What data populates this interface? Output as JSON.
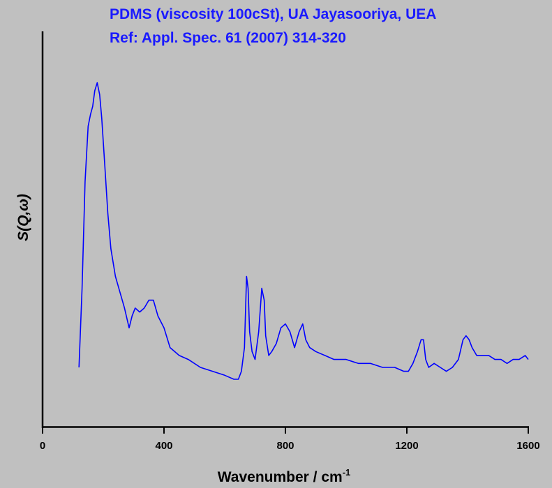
{
  "chart_data": {
    "type": "line",
    "title_lines": [
      "PDMS (viscosity 100cSt), UA Jayasooriya, UEA",
      "Ref: Appl. Spec. 61 (2007) 314-320"
    ],
    "xlabel": "Wavenumber / cm",
    "xlabel_superscript": "-1",
    "ylabel": "S(Q,ω)",
    "xlim": [
      0,
      1600
    ],
    "ylim": [
      0,
      100
    ],
    "x_ticks": [
      "0",
      "400",
      "800",
      "1200",
      "1600"
    ],
    "x_tick_values": [
      0,
      400,
      800,
      1200,
      1600
    ],
    "y_ticks_shown": false,
    "grid": false,
    "colors": {
      "line": "#0000ff",
      "title": "#1a1aff",
      "background": "#c0c0c0",
      "axis": "#000000"
    },
    "series": [
      {
        "x": [
          120,
          130,
          140,
          150,
          158,
          165,
          172,
          180,
          188,
          195,
          205,
          215,
          225,
          240,
          255,
          270,
          285,
          295,
          305,
          320,
          335,
          350,
          365,
          380,
          400,
          420,
          450,
          480,
          520,
          560,
          600,
          630,
          645,
          655,
          665,
          672,
          677,
          682,
          690,
          700,
          712,
          722,
          730,
          735,
          745,
          755,
          770,
          785,
          800,
          815,
          830,
          845,
          857,
          867,
          880,
          900,
          930,
          960,
          1000,
          1040,
          1080,
          1120,
          1160,
          1190,
          1205,
          1220,
          1235,
          1247,
          1255,
          1262,
          1272,
          1290,
          1310,
          1330,
          1350,
          1370,
          1385,
          1395,
          1405,
          1415,
          1430,
          1450,
          1470,
          1490,
          1510,
          1530,
          1550,
          1570,
          1590,
          1600
        ],
        "y": [
          15,
          35,
          62,
          76,
          79,
          81,
          85,
          87,
          84,
          78,
          66,
          54,
          45,
          38,
          34,
          30,
          25,
          28,
          30,
          29,
          30,
          32,
          32,
          28,
          25,
          20,
          18,
          17,
          15,
          14,
          13,
          12,
          12,
          14,
          20,
          38,
          35,
          24,
          19,
          17,
          24,
          35,
          32,
          23,
          18,
          19,
          21,
          25,
          26,
          24,
          20,
          24,
          26,
          22,
          20,
          19,
          18,
          17,
          17,
          16,
          16,
          15,
          15,
          14,
          14,
          16,
          19,
          22,
          22,
          17,
          15,
          16,
          15,
          14,
          15,
          17,
          22,
          23,
          22,
          20,
          18,
          18,
          18,
          17,
          17,
          16,
          17,
          17,
          18,
          17
        ]
      }
    ]
  }
}
